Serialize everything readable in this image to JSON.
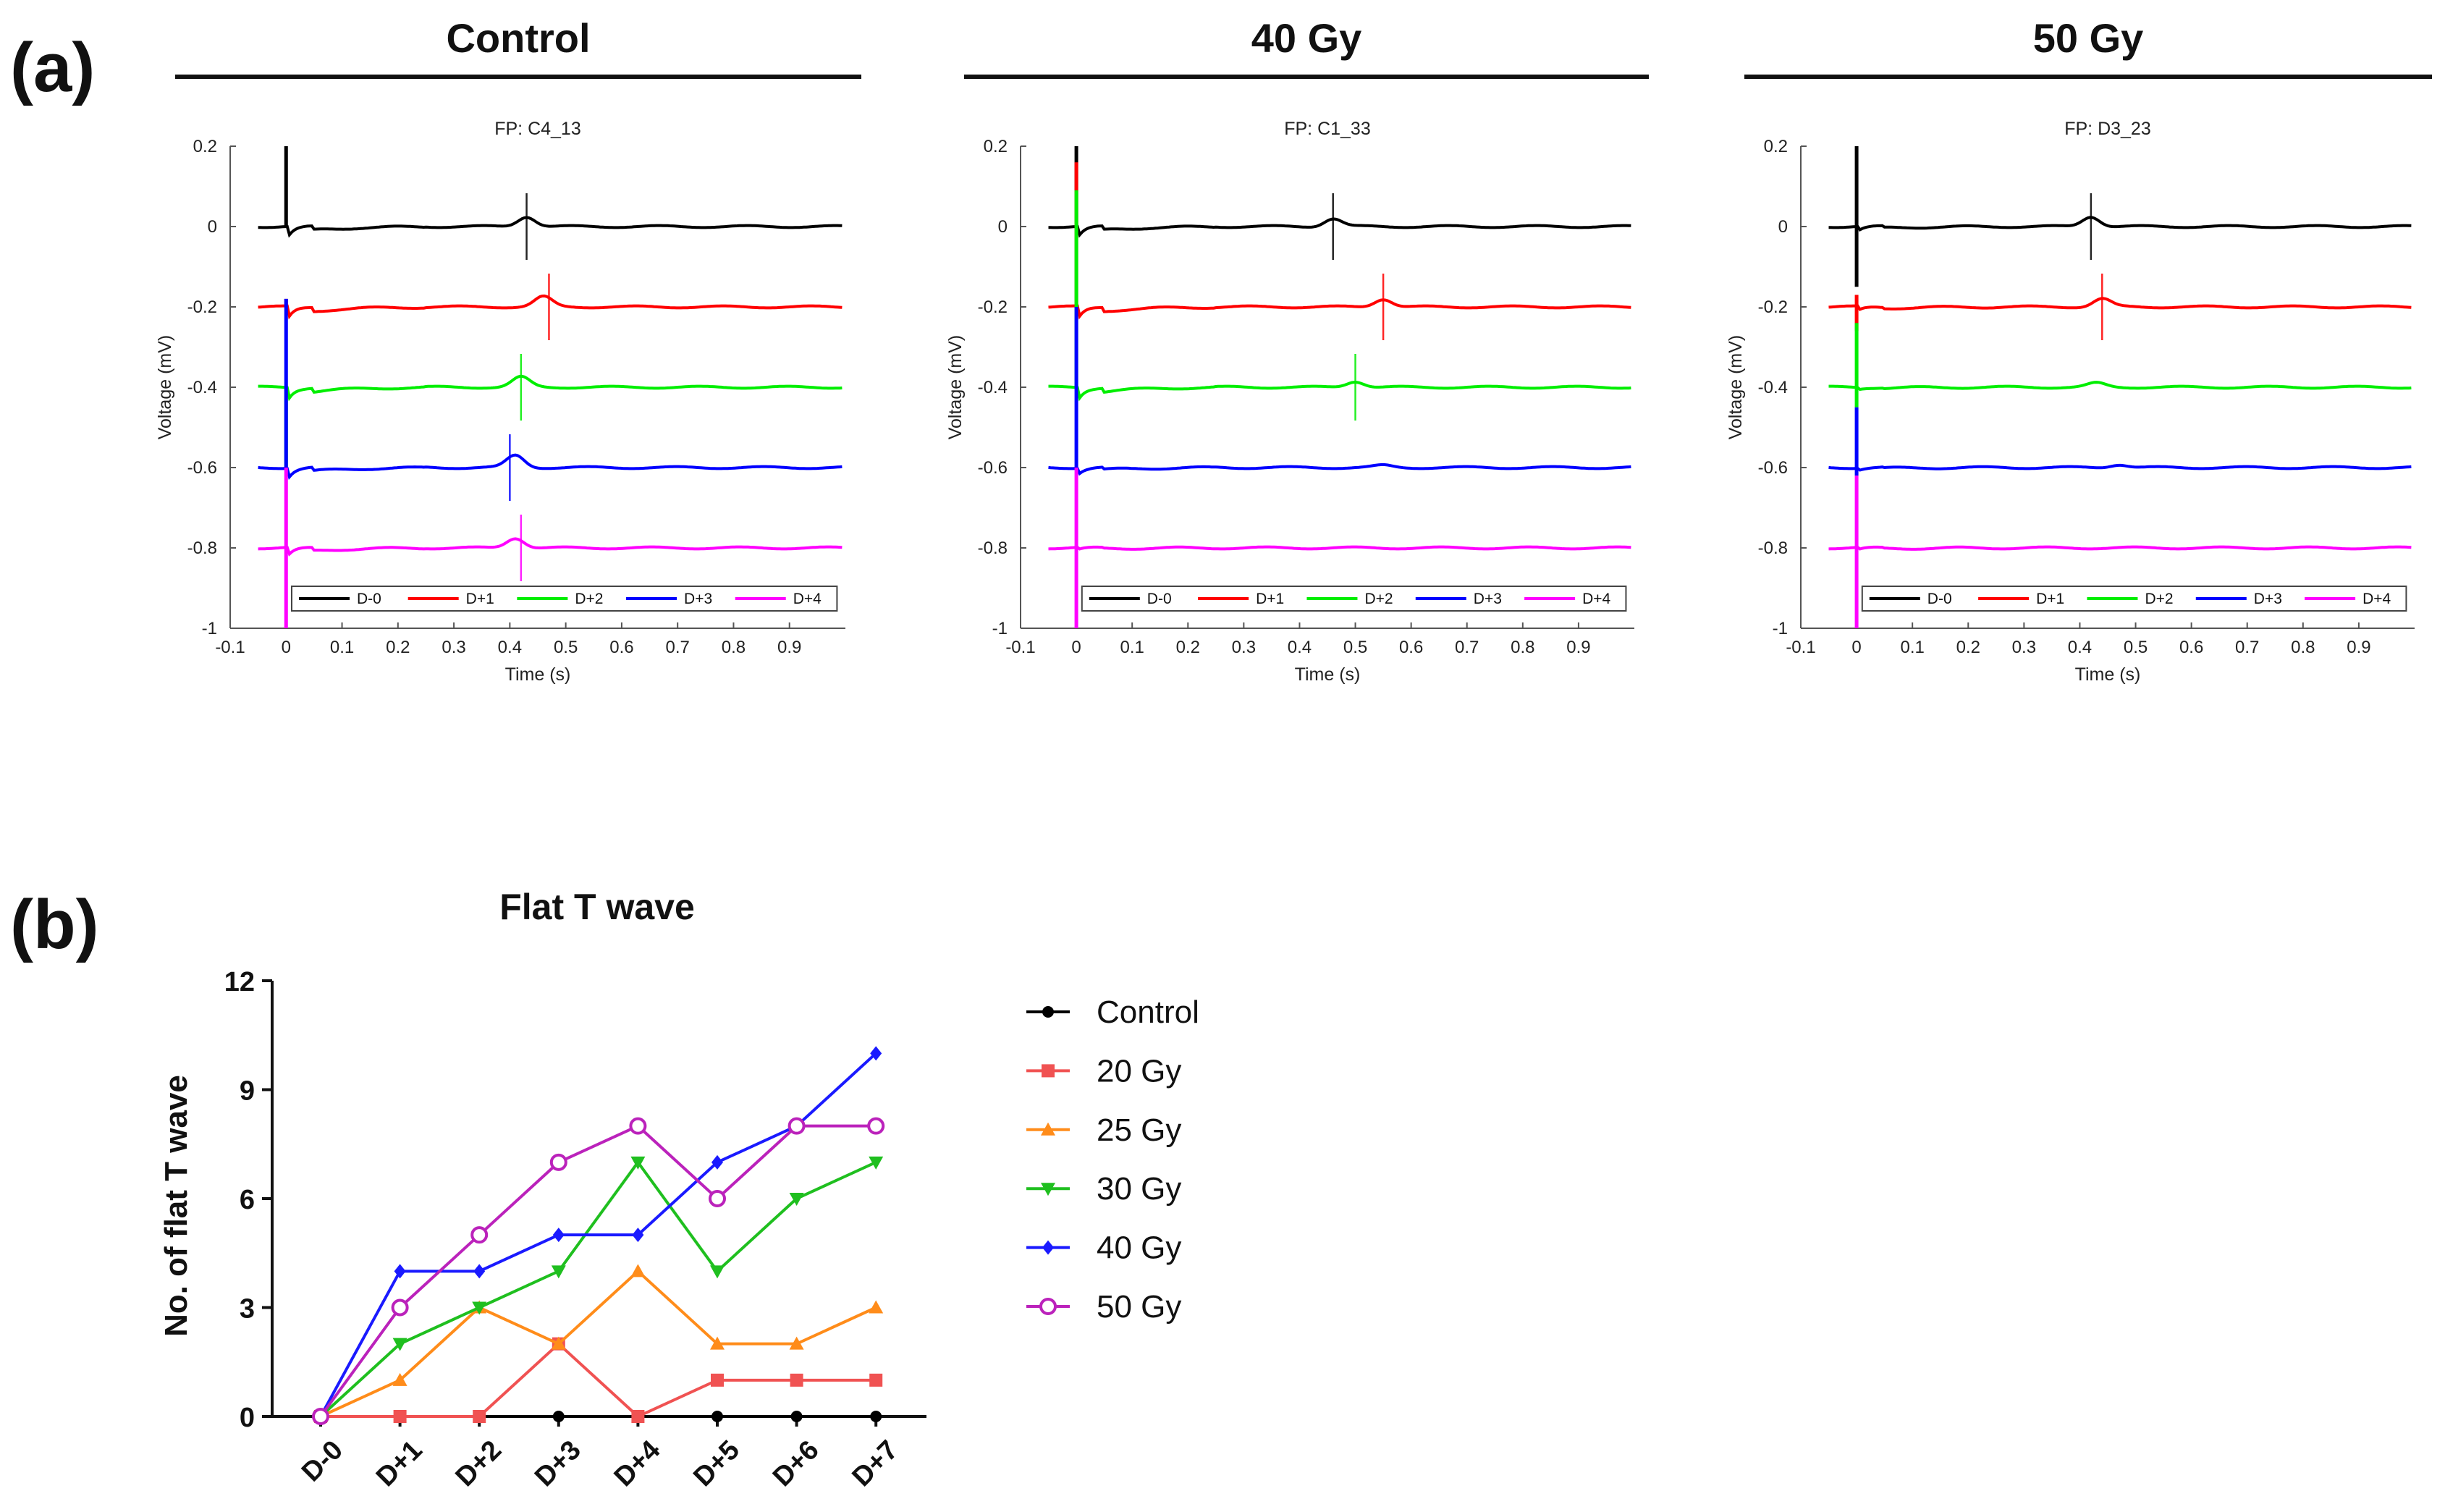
{
  "figure": {
    "panel_a_label": "(a)",
    "panel_b_label": "(b)"
  },
  "colors": {
    "D-0": "#000000",
    "D+1": "#ff0000",
    "D+2": "#00ee00",
    "D+3": "#0000ff",
    "D+4": "#ff00ff"
  },
  "chart_data": [
    {
      "type": "line",
      "panel": "a",
      "group": "Control",
      "title": "FP: C4_13",
      "xlabel": "Time (s)",
      "ylabel": "Voltage (mV)",
      "xlim": [
        -0.1,
        1.0
      ],
      "ylim": [
        -1,
        0.2
      ],
      "xticks": [
        "-0.1",
        "0",
        "0.1",
        "0.2",
        "0.3",
        "0.4",
        "0.5",
        "0.6",
        "0.7",
        "0.8",
        "0.9"
      ],
      "yticks": [
        "0.2",
        "0",
        "-0.2",
        "-0.4",
        "-0.6",
        "-0.8",
        "-1"
      ],
      "legend": [
        "D-0",
        "D+1",
        "D+2",
        "D+3",
        "D+4"
      ],
      "series": [
        {
          "name": "D-0",
          "baseline": 0.0,
          "t_peak": 0.43,
          "t_amp": 0.025,
          "marker_t": 0.43,
          "post_drop": 0.025,
          "spike": [
            0.2,
            0.0
          ]
        },
        {
          "name": "D+1",
          "baseline": -0.2,
          "t_peak": 0.46,
          "t_amp": 0.025,
          "marker_t": 0.47,
          "post_drop": 0.03,
          "spike": [
            -0.18,
            -0.2
          ]
        },
        {
          "name": "D+2",
          "baseline": -0.4,
          "t_peak": 0.42,
          "t_amp": 0.025,
          "marker_t": 0.42,
          "post_drop": 0.03,
          "spike": [
            -0.4,
            -0.6
          ]
        },
        {
          "name": "D+3",
          "baseline": -0.6,
          "t_peak": 0.41,
          "t_amp": 0.03,
          "marker_t": 0.4,
          "post_drop": 0.025,
          "spike": [
            -0.18,
            -0.6
          ]
        },
        {
          "name": "D+4",
          "baseline": -0.8,
          "t_peak": 0.41,
          "t_amp": 0.025,
          "marker_t": 0.42,
          "post_drop": 0.02,
          "spike": [
            -0.6,
            -1.0
          ]
        }
      ]
    },
    {
      "type": "line",
      "panel": "a",
      "group": "40 Gy",
      "title": "FP: C1_33",
      "xlabel": "Time (s)",
      "ylabel": "Voltage (mV)",
      "xlim": [
        -0.1,
        1.0
      ],
      "ylim": [
        -1,
        0.2
      ],
      "xticks": [
        "-0.1",
        "0",
        "0.1",
        "0.2",
        "0.3",
        "0.4",
        "0.5",
        "0.6",
        "0.7",
        "0.8",
        "0.9"
      ],
      "yticks": [
        "0.2",
        "0",
        "-0.2",
        "-0.4",
        "-0.6",
        "-0.8",
        "-1"
      ],
      "legend": [
        "D-0",
        "D+1",
        "D+2",
        "D+3",
        "D+4"
      ],
      "series": [
        {
          "name": "D-0",
          "baseline": 0.0,
          "t_peak": 0.46,
          "t_amp": 0.02,
          "marker_t": 0.46,
          "post_drop": 0.025,
          "spike": [
            0.2,
            0.0
          ]
        },
        {
          "name": "D+1",
          "baseline": -0.2,
          "t_peak": 0.55,
          "t_amp": 0.02,
          "marker_t": 0.55,
          "post_drop": 0.03,
          "spike": [
            0.16,
            -0.2
          ]
        },
        {
          "name": "D+2",
          "baseline": -0.4,
          "t_peak": 0.5,
          "t_amp": 0.015,
          "marker_t": 0.5,
          "post_drop": 0.03,
          "spike": [
            0.09,
            -0.4
          ]
        },
        {
          "name": "D+3",
          "baseline": -0.6,
          "t_peak": 0.55,
          "t_amp": 0.005,
          "marker_t": null,
          "post_drop": 0.015,
          "spike": [
            -0.2,
            -0.6
          ]
        },
        {
          "name": "D+4",
          "baseline": -0.8,
          "t_peak": 0.55,
          "t_amp": 0.0,
          "marker_t": null,
          "post_drop": 0.005,
          "spike": [
            -0.6,
            -1.0
          ]
        }
      ]
    },
    {
      "type": "line",
      "panel": "a",
      "group": "50 Gy",
      "title": "FP: D3_23",
      "xlabel": "Time (s)",
      "ylabel": "Voltage (mV)",
      "xlim": [
        -0.1,
        1.0
      ],
      "ylim": [
        -1,
        0.2
      ],
      "xticks": [
        "-0.1",
        "0",
        "0.1",
        "0.2",
        "0.3",
        "0.4",
        "0.5",
        "0.6",
        "0.7",
        "0.8",
        "0.9"
      ],
      "yticks": [
        "0.2",
        "0",
        "-0.2",
        "-0.4",
        "-0.6",
        "-0.8",
        "-1"
      ],
      "legend": [
        "D-0",
        "D+1",
        "D+2",
        "D+3",
        "D+4"
      ],
      "series": [
        {
          "name": "D-0",
          "baseline": 0.0,
          "t_peak": 0.42,
          "t_amp": 0.025,
          "marker_t": 0.42,
          "post_drop": 0.01,
          "spike": [
            0.2,
            -0.15
          ]
        },
        {
          "name": "D+1",
          "baseline": -0.2,
          "t_peak": 0.44,
          "t_amp": 0.02,
          "marker_t": 0.44,
          "post_drop": 0.01,
          "spike": [
            -0.17,
            -0.26
          ]
        },
        {
          "name": "D+2",
          "baseline": -0.4,
          "t_peak": 0.43,
          "t_amp": 0.01,
          "marker_t": null,
          "post_drop": 0.005,
          "spike": [
            -0.24,
            -0.45
          ]
        },
        {
          "name": "D+3",
          "baseline": -0.6,
          "t_peak": 0.47,
          "t_amp": 0.008,
          "marker_t": null,
          "post_drop": 0.005,
          "spike": [
            -0.45,
            -0.62
          ]
        },
        {
          "name": "D+4",
          "baseline": -0.8,
          "t_peak": 0.47,
          "t_amp": 0.0,
          "marker_t": null,
          "post_drop": 0.005,
          "spike": [
            -0.62,
            -1.0
          ]
        }
      ]
    },
    {
      "type": "line",
      "panel": "b",
      "title": "Flat T wave",
      "xlabel": "",
      "ylabel": "No. of flat T wave",
      "categories": [
        "D-0",
        "D+1",
        "D+2",
        "D+3",
        "D+4",
        "D+5",
        "D+6",
        "D+7"
      ],
      "ylim": [
        0,
        12
      ],
      "yticks": [
        0,
        3,
        6,
        9,
        12
      ],
      "series": [
        {
          "name": "Control",
          "color": "#000000",
          "marker": "circle",
          "values": [
            0,
            0,
            0,
            0,
            0,
            0,
            0,
            0
          ]
        },
        {
          "name": "20 Gy",
          "color": "#f05252",
          "marker": "square",
          "values": [
            0,
            0,
            0,
            2,
            0,
            1,
            1,
            1
          ]
        },
        {
          "name": "25 Gy",
          "color": "#ff8c1a",
          "marker": "triangle-up",
          "values": [
            0,
            1,
            3,
            2,
            4,
            2,
            2,
            3
          ]
        },
        {
          "name": "30 Gy",
          "color": "#1fbf1f",
          "marker": "triangle-down",
          "values": [
            0,
            2,
            3,
            4,
            7,
            4,
            6,
            7
          ]
        },
        {
          "name": "40 Gy",
          "color": "#1a1aff",
          "marker": "diamond",
          "values": [
            0,
            4,
            4,
            5,
            5,
            7,
            8,
            10
          ]
        },
        {
          "name": "50 Gy",
          "color": "#bb22bb",
          "marker": "open-circle",
          "values": [
            0,
            3,
            5,
            7,
            8,
            6,
            8,
            8
          ]
        }
      ]
    }
  ]
}
